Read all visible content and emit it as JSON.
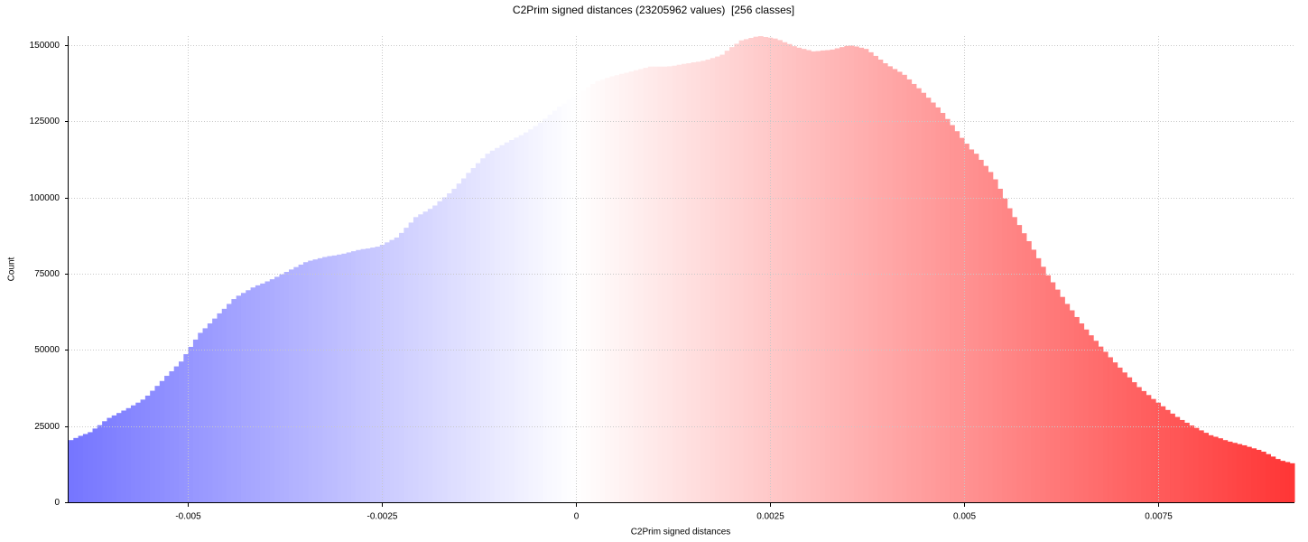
{
  "chart_data": {
    "type": "histogram",
    "title": "C2Prim signed distances (23205962 values)  [256 classes]",
    "x_label": "C2Prim signed distances",
    "y_label": "Count",
    "colormap": [
      "#7575ff",
      "#ffffff",
      "#ff3535"
    ],
    "grid": true,
    "xlim": [
      -0.00654,
      0.0092552
    ],
    "ylim": [
      0,
      153000
    ],
    "xticks": [
      -0.005,
      -0.0025,
      0,
      0.0025,
      0.005,
      0.0075
    ],
    "yticks": [
      0,
      25000,
      50000,
      75000,
      100000,
      125000,
      150000
    ],
    "bins": [
      -0.00654,
      -0.0064783,
      -0.0064166,
      -0.0063549,
      -0.0062932,
      -0.0062315,
      -0.0061698,
      -0.0061081,
      -0.0060464,
      -0.0059847,
      -0.005923,
      -0.0058613,
      -0.0057996,
      -0.0057379,
      -0.0056762,
      -0.0056145,
      -0.0055528,
      -0.0054911,
      -0.0054294,
      -0.0053677,
      -0.005306,
      -0.0052443,
      -0.0051826,
      -0.0051209,
      -0.0050592,
      -0.0049975,
      -0.0049358,
      -0.0048741,
      -0.0048124,
      -0.0047507,
      -0.004689,
      -0.0046273,
      -0.0045656,
      -0.0045039,
      -0.0044422,
      -0.0043805,
      -0.0043188,
      -0.0042571,
      -0.0041954,
      -0.0041337,
      -0.004072,
      -0.0040103,
      -0.0039486,
      -0.0038869,
      -0.0038252,
      -0.0037635,
      -0.0037018,
      -0.0036401,
      -0.0035784,
      -0.0035167,
      -0.003455,
      -0.0033933,
      -0.0033316,
      -0.0032699,
      -0.0032082,
      -0.0031465,
      -0.0030848,
      -0.0030231,
      -0.0029614,
      -0.0028997,
      -0.002838,
      -0.0027763,
      -0.0027146,
      -0.0026529,
      -0.0025912,
      -0.0025295,
      -0.0024678,
      -0.0024061,
      -0.0023444,
      -0.0022827,
      -0.002221,
      -0.0021593,
      -0.0020976,
      -0.0020359,
      -0.0019742,
      -0.0019125,
      -0.0018508,
      -0.0017891,
      -0.0017274,
      -0.0016657,
      -0.001604,
      -0.0015423,
      -0.0014806,
      -0.0014189,
      -0.0013572,
      -0.0012955,
      -0.0012338,
      -0.0011721,
      -0.0011104,
      -0.0010487,
      -0.000987,
      -0.0009253,
      -0.0008636,
      -0.0008019,
      -0.0007402,
      -0.0006785,
      -0.0006168,
      -0.0005551,
      -0.0004934,
      -0.0004317,
      -0.00037,
      -0.0003083,
      -0.0002466,
      -0.0001849,
      -0.0001232,
      -6.15e-05,
      2e-07,
      6.19e-05,
      0.0001236,
      0.0001853,
      0.000247,
      0.0003087,
      0.0003704,
      0.0004321,
      0.0004938,
      0.0005555,
      0.0006172,
      0.0006789,
      0.0007406,
      0.0008023,
      0.000864,
      0.0009257,
      0.0009874,
      0.0010491,
      0.0011108,
      0.0011725,
      0.0012342,
      0.0012959,
      0.0013576,
      0.0014193,
      0.001481,
      0.0015427,
      0.0016044,
      0.0016661,
      0.0017278,
      0.0017895,
      0.0018512,
      0.0019129,
      0.0019746,
      0.0020363,
      0.002098,
      0.0021597,
      0.0022214,
      0.0022831,
      0.0023448,
      0.0024065,
      0.0024682,
      0.0025299,
      0.0025916,
      0.0026533,
      0.002715,
      0.0027767,
      0.0028384,
      0.0029001,
      0.0029618,
      0.0030235,
      0.0030852,
      0.0031469,
      0.0032086,
      0.0032703,
      0.003332,
      0.0033937,
      0.0034554,
      0.0035171,
      0.0035788,
      0.0036405,
      0.0037022,
      0.0037639,
      0.0038256,
      0.0038873,
      0.003949,
      0.0040107,
      0.0040724,
      0.0041341,
      0.0041958,
      0.0042575,
      0.0043192,
      0.0043809,
      0.0044426,
      0.0045043,
      0.004566,
      0.0046277,
      0.0046894,
      0.0047511,
      0.0048128,
      0.0048745,
      0.0049362,
      0.0049979,
      0.0050596,
      0.0051213,
      0.005183,
      0.0052447,
      0.0053064,
      0.0053681,
      0.0054298,
      0.0054915,
      0.0055532,
      0.0056149,
      0.0056766,
      0.0057383,
      0.0058,
      0.0058617,
      0.0059234,
      0.0059851,
      0.0060468,
      0.0061085,
      0.0061702,
      0.0062319,
      0.0062936,
      0.0063553,
      0.006417,
      0.0064787,
      0.0065404,
      0.0066021,
      0.0066638,
      0.0067255,
      0.0067872,
      0.0068489,
      0.0069106,
      0.0069723,
      0.007034,
      0.0070957,
      0.0071574,
      0.0072191,
      0.0072808,
      0.0073425,
      0.0074042,
      0.0074659,
      0.0075276,
      0.0075893,
      0.007651,
      0.0077127,
      0.0077744,
      0.0078361,
      0.0078978,
      0.0079595,
      0.0080212,
      0.0080829,
      0.0081446,
      0.0082063,
      0.008268,
      0.0083297,
      0.0083914,
      0.0084531,
      0.0085148,
      0.0085765,
      0.0086382,
      0.0086999,
      0.0087616,
      0.0088233,
      0.008885,
      0.0089467,
      0.0090084,
      0.0090701,
      0.0091318,
      0.0091935,
      0.0092552
    ],
    "values": [
      20400,
      21100,
      21800,
      22400,
      23000,
      24200,
      25300,
      26600,
      27700,
      28500,
      29300,
      30100,
      30900,
      31800,
      32700,
      33700,
      35000,
      36600,
      38200,
      39800,
      41500,
      43000,
      44600,
      46200,
      48600,
      51000,
      53400,
      55600,
      57100,
      58700,
      60300,
      62000,
      63500,
      65100,
      66700,
      67800,
      68700,
      69600,
      70500,
      71200,
      71800,
      72500,
      73200,
      74000,
      74800,
      75600,
      76400,
      77200,
      78000,
      78800,
      79300,
      79700,
      80100,
      80500,
      80800,
      81000,
      81300,
      81600,
      82000,
      82400,
      82800,
      83100,
      83300,
      83600,
      83900,
      84500,
      85300,
      86100,
      86900,
      88400,
      90100,
      91800,
      93600,
      94500,
      95400,
      96300,
      97400,
      98800,
      100100,
      101400,
      102900,
      104600,
      106300,
      108100,
      109700,
      111300,
      112900,
      114400,
      115400,
      116300,
      117200,
      118100,
      118900,
      119700,
      120500,
      121400,
      122400,
      123500,
      124600,
      125900,
      127200,
      128500,
      129800,
      130900,
      132000,
      133000,
      134100,
      135200,
      136200,
      137300,
      138200,
      138700,
      139300,
      139800,
      140200,
      140600,
      141000,
      141400,
      141800,
      142200,
      142600,
      143000,
      143000,
      143000,
      143000,
      143100,
      143300,
      143600,
      143900,
      144100,
      144400,
      144600,
      144900,
      145300,
      145800,
      146300,
      146900,
      148200,
      149400,
      150500,
      151600,
      152000,
      152400,
      152800,
      153000,
      152700,
      152500,
      152200,
      151700,
      151000,
      150400,
      149700,
      149200,
      148800,
      148400,
      148000,
      148100,
      148300,
      148400,
      148600,
      149000,
      149400,
      149800,
      149900,
      149600,
      149200,
      148800,
      147700,
      146500,
      145300,
      144100,
      143100,
      142200,
      141300,
      140300,
      138800,
      137300,
      135900,
      134400,
      132800,
      131200,
      129600,
      127800,
      125800,
      123800,
      121800,
      119600,
      117700,
      115800,
      114400,
      112400,
      110400,
      108400,
      106000,
      102900,
      99700,
      96500,
      93600,
      91000,
      88300,
      85700,
      82900,
      80100,
      77300,
      74500,
      72200,
      69800,
      67400,
      65100,
      63000,
      60800,
      58700,
      56700,
      54800,
      53000,
      51100,
      49400,
      47600,
      45900,
      44200,
      42600,
      41000,
      39400,
      37800,
      36500,
      35200,
      33900,
      32700,
      31500,
      30300,
      29100,
      28000,
      27000,
      26100,
      25200,
      24400,
      23600,
      22800,
      22000,
      21500,
      21000,
      20400,
      19900,
      19500,
      19100,
      18700,
      18200,
      17700,
      17200,
      16600,
      15800,
      15000,
      14200,
      13600,
      13200,
      12800
    ]
  }
}
